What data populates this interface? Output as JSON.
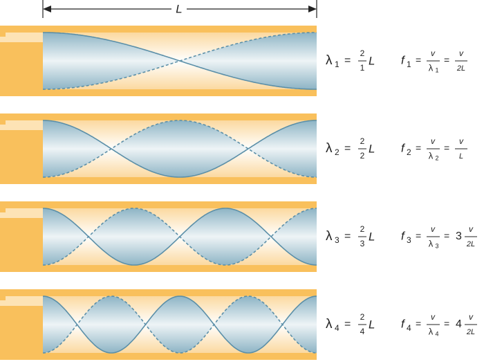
{
  "length_label": "L",
  "rows": [
    {
      "wavelength": {
        "symbol": "λ",
        "sub": "1",
        "eq": "=",
        "num": "2",
        "den": "1",
        "unit": "L"
      },
      "frequency": {
        "symbol": "f",
        "sub": "1",
        "eq1": "=",
        "num1": "v",
        "den1": "λ",
        "den1_sub": "1",
        "eq2": "=",
        "num2": "v",
        "den2": "2L"
      }
    },
    {
      "wavelength": {
        "symbol": "λ",
        "sub": "2",
        "eq": "=",
        "num": "2",
        "den": "2",
        "unit": "L"
      },
      "frequency": {
        "symbol": "f",
        "sub": "2",
        "eq1": "=",
        "num1": "v",
        "den1": "λ",
        "den1_sub": "2",
        "eq2": "=",
        "num2": "v",
        "den2": "L"
      }
    },
    {
      "wavelength": {
        "symbol": "λ",
        "sub": "3",
        "eq": "=",
        "num": "2",
        "den": "3",
        "unit": "L"
      },
      "frequency": {
        "symbol": "f",
        "sub": "3",
        "eq1": "=",
        "num1": "v",
        "den1": "λ",
        "den1_sub": "3",
        "eq2": "=",
        "coef": "3",
        "num2": "v",
        "den2": "2L"
      }
    },
    {
      "wavelength": {
        "symbol": "λ",
        "sub": "4",
        "eq": "=",
        "num": "2",
        "den": "4",
        "unit": "L"
      },
      "frequency": {
        "symbol": "f",
        "sub": "4",
        "eq1": "=",
        "num1": "v",
        "den1": "λ",
        "den1_sub": "4",
        "eq2": "=",
        "coef": "4",
        "num2": "v",
        "den2": "2L"
      }
    }
  ]
}
